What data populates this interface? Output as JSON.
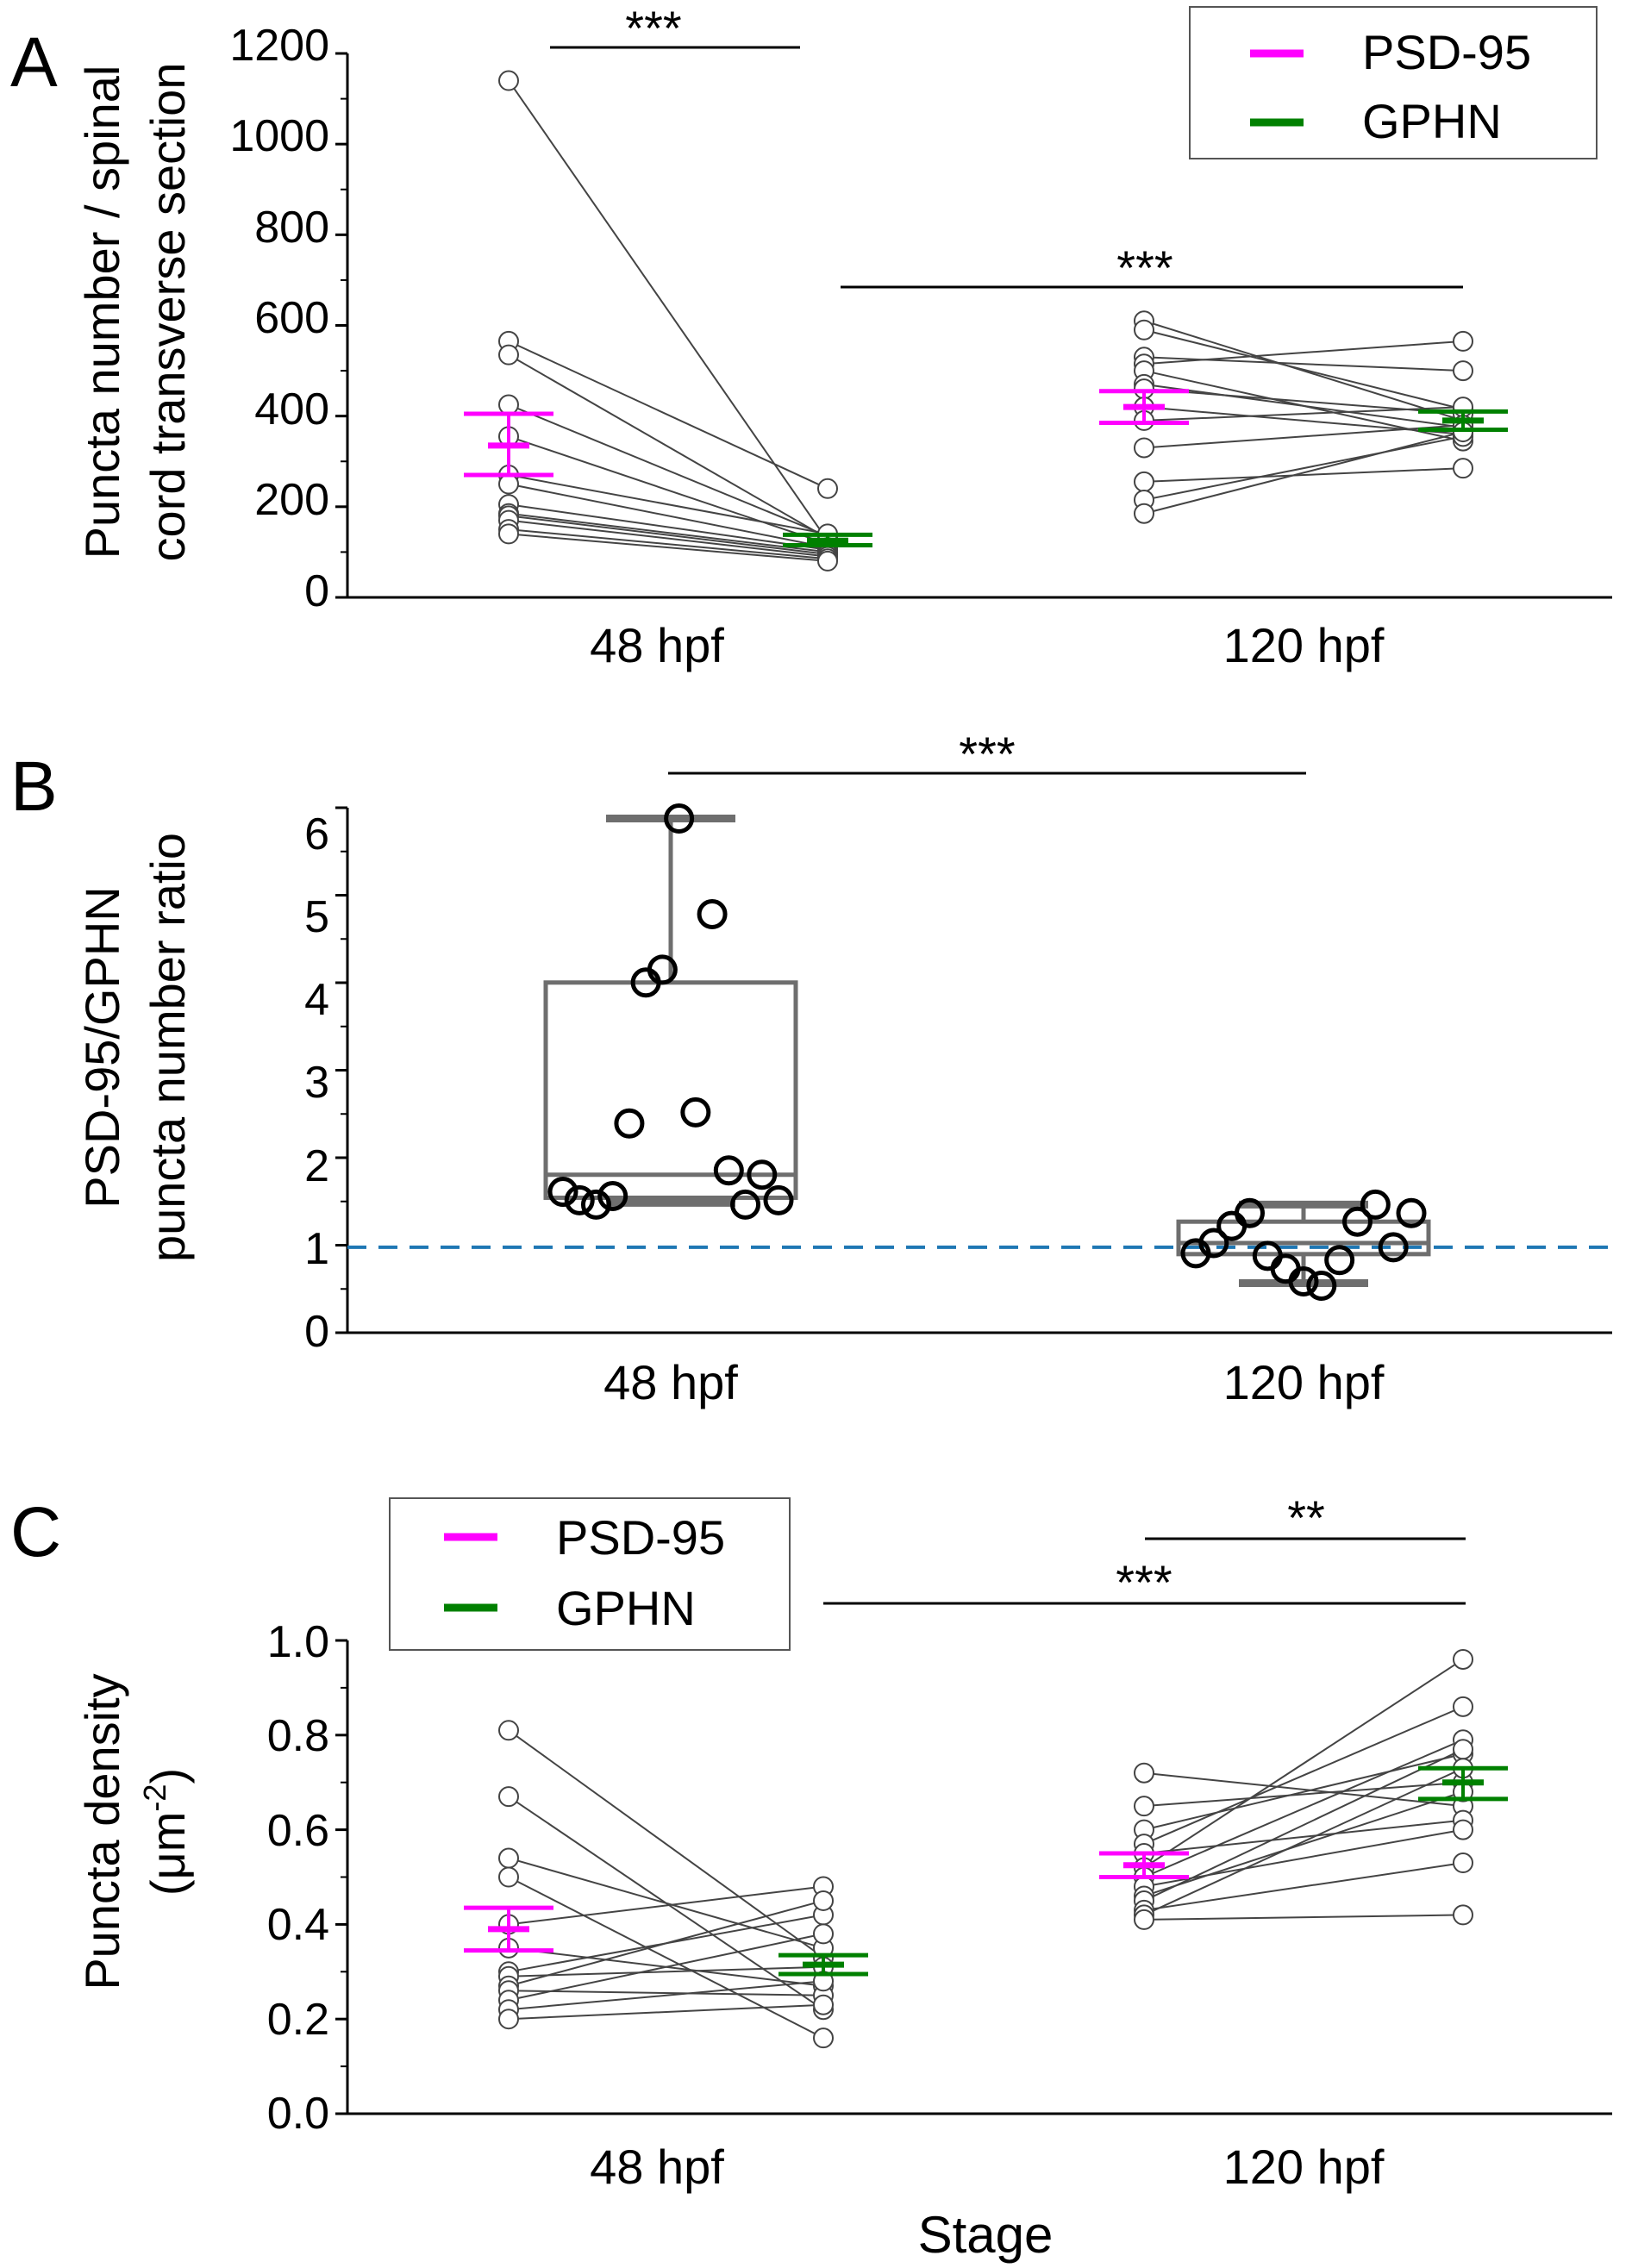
{
  "colors": {
    "psd95": "#ff00ff",
    "gphn": "#008000",
    "pair_line": "#444444",
    "box": "#6e6e6e",
    "reference_line": "#1f77b4"
  },
  "chart_data": [
    {
      "panel": "A",
      "type": "scatter",
      "ylabel_line1": "Puncta number / spinal",
      "ylabel_line2": "cord transverse section",
      "ylim": [
        0,
        1200
      ],
      "yticks": [
        "0",
        "200",
        "400",
        "600",
        "800",
        "1000",
        "1200"
      ],
      "categories": [
        "48 hpf",
        "120 hpf"
      ],
      "legend": {
        "position": "top-right",
        "entries": [
          "PSD-95",
          "GPHN"
        ]
      },
      "paired": true,
      "groups": [
        {
          "stage": "48 hpf",
          "psd95": [
            1140,
            565,
            535,
            425,
            355,
            270,
            250,
            205,
            185,
            180,
            170,
            150,
            140
          ],
          "gphn": [
            125,
            240,
            130,
            135,
            118,
            140,
            110,
            105,
            100,
            95,
            90,
            85,
            80
          ],
          "psd95_mean": 335,
          "psd95_sem": [
            270,
            405
          ],
          "gphn_mean": 125,
          "gphn_sem": [
            115,
            138
          ]
        },
        {
          "stage": "120 hpf",
          "psd95": [
            610,
            590,
            530,
            515,
            500,
            470,
            460,
            420,
            390,
            330,
            255,
            215,
            185
          ],
          "gphn": [
            390,
            415,
            500,
            565,
            345,
            375,
            405,
            360,
            420,
            380,
            285,
            355,
            365
          ],
          "psd95_mean": 420,
          "psd95_sem": [
            385,
            455
          ],
          "gphn_mean": 390,
          "gphn_sem": [
            370,
            410
          ]
        }
      ],
      "significance": [
        {
          "label": "***",
          "from": "48 hpf PSD-95",
          "to": "48 hpf GPHN"
        },
        {
          "label": "***",
          "from": "48 hpf GPHN",
          "to": "120 hpf GPHN"
        }
      ]
    },
    {
      "panel": "B",
      "type": "box",
      "ylabel_line1": "PSD-95/GPHN",
      "ylabel_line2": "puncta number ratio",
      "ylim": [
        0,
        6.5
      ],
      "yticks": [
        "0",
        "1",
        "2",
        "3",
        "4",
        "5",
        "6"
      ],
      "categories": [
        "48 hpf",
        "120 hpf"
      ],
      "reference_line": 1,
      "groups": [
        {
          "stage": "48 hpf",
          "box": {
            "min": 1.52,
            "q1": 1.58,
            "median": 1.85,
            "q3": 4.1,
            "max": 6.02
          },
          "points": [
            1.65,
            1.55,
            1.5,
            1.6,
            2.45,
            4.1,
            4.25,
            6.02,
            2.58,
            4.9,
            1.9,
            1.5,
            1.85,
            1.55
          ]
        },
        {
          "stage": "120 hpf",
          "box": {
            "min": 0.58,
            "q1": 0.92,
            "median": 1.05,
            "q3": 1.3,
            "max": 1.5
          },
          "points": [
            0.93,
            1.05,
            1.25,
            1.4,
            0.9,
            0.75,
            0.6,
            0.55,
            0.85,
            1.3,
            1.5,
            1.0,
            1.4
          ]
        }
      ],
      "significance": [
        {
          "label": "***",
          "from": "48 hpf",
          "to": "120 hpf"
        }
      ]
    },
    {
      "panel": "C",
      "type": "scatter",
      "ylabel_line1": "Puncta density",
      "ylabel_line2": "(μm",
      "ylabel_sup": "-2",
      "ylabel_close": ")",
      "xlabel": "Stage",
      "ylim": [
        0,
        1.0
      ],
      "yticks": [
        "0.0",
        "0.2",
        "0.4",
        "0.6",
        "0.8",
        "1.0"
      ],
      "categories": [
        "48 hpf",
        "120 hpf"
      ],
      "legend": {
        "position": "top-left",
        "entries": [
          "PSD-95",
          "GPHN"
        ]
      },
      "paired": true,
      "groups": [
        {
          "stage": "48 hpf",
          "psd95": [
            0.81,
            0.67,
            0.54,
            0.5,
            0.4,
            0.35,
            0.3,
            0.29,
            0.27,
            0.26,
            0.24,
            0.22,
            0.2
          ],
          "gphn": [
            0.33,
            0.22,
            0.35,
            0.16,
            0.48,
            0.27,
            0.42,
            0.31,
            0.45,
            0.25,
            0.38,
            0.28,
            0.23
          ],
          "psd95_mean": 0.39,
          "psd95_sem": [
            0.345,
            0.435
          ],
          "gphn_mean": 0.315,
          "gphn_sem": [
            0.295,
            0.335
          ]
        },
        {
          "stage": "120 hpf",
          "psd95": [
            0.72,
            0.65,
            0.6,
            0.57,
            0.55,
            0.52,
            0.5,
            0.48,
            0.46,
            0.45,
            0.43,
            0.42,
            0.41
          ],
          "gphn": [
            0.65,
            0.7,
            0.76,
            0.86,
            0.62,
            0.96,
            0.79,
            0.6,
            0.68,
            0.77,
            0.53,
            0.73,
            0.42
          ],
          "psd95_mean": 0.525,
          "psd95_sem": [
            0.5,
            0.55
          ],
          "gphn_mean": 0.7,
          "gphn_sem": [
            0.665,
            0.73
          ]
        }
      ],
      "significance": [
        {
          "label": "**",
          "from": "120 hpf PSD-95",
          "to": "120 hpf GPHN"
        },
        {
          "label": "***",
          "from": "48 hpf GPHN",
          "to": "120 hpf GPHN"
        }
      ]
    }
  ]
}
